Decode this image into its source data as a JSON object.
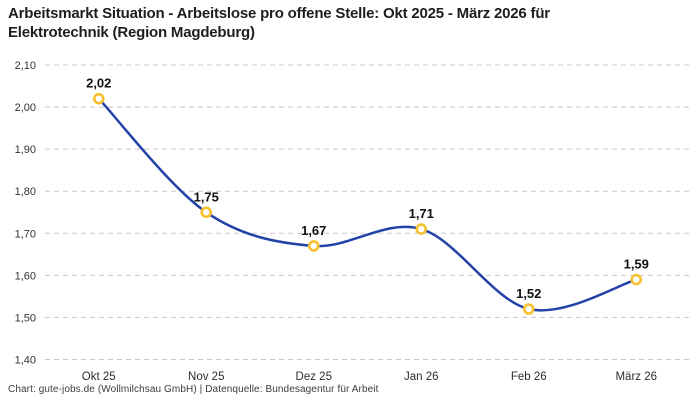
{
  "header": {
    "title_line1": "Arbeitsmarkt Situation - Arbeitslose pro offene Stelle: Okt 2025 - März 2026 für",
    "title_line2": "Elektrotechnik (Region Magdeburg)"
  },
  "footer": {
    "credit": "Chart: gute-jobs.de (Wollmilchsau GmbH) | Datenquelle: Bundesagentur für Arbeit"
  },
  "chart_data": {
    "type": "line",
    "title": "Arbeitsmarkt Situation - Arbeitslose pro offene Stelle: Okt 2025 - März 2026 für Elektrotechnik (Region Magdeburg)",
    "categories": [
      "Okt 25",
      "Nov 25",
      "Dez 25",
      "Jan 26",
      "Feb 26",
      "März 26"
    ],
    "values": [
      2.02,
      1.75,
      1.67,
      1.71,
      1.52,
      1.59
    ],
    "value_labels": [
      "2,02",
      "1,75",
      "1,67",
      "1,71",
      "1,52",
      "1,59"
    ],
    "y_tick_values": [
      2.1,
      2.0,
      1.9,
      1.8,
      1.7,
      1.6,
      1.5,
      1.4
    ],
    "y_tick_labels": [
      "2,10",
      "2,00",
      "1,90",
      "1,80",
      "1,70",
      "1,60",
      "1,50",
      "1,40"
    ],
    "ylim": [
      1.4,
      2.1
    ],
    "grid": "horizontal-dashed",
    "legend": "none",
    "line_style": "smooth",
    "colors": {
      "line": "#2342a8",
      "marker_ring": "#f7c12e",
      "marker_fill": "#ffffff",
      "grid": "#c8c8c8"
    }
  }
}
